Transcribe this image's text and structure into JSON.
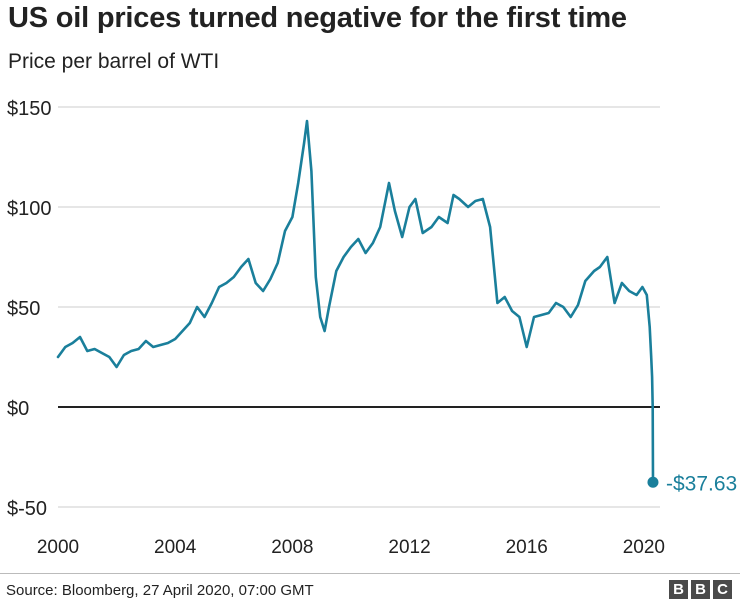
{
  "title": "US oil prices turned negative for the first time",
  "subtitle": "Price per barrel of WTI",
  "source": "Source: Bloomberg, 27 April 2020, 07:00 GMT",
  "logo": [
    "B",
    "B",
    "C"
  ],
  "colors": {
    "line": "#1a7f9b",
    "grid": "#cccccc",
    "zero": "#222222",
    "text": "#222222"
  },
  "chart_data": {
    "type": "line",
    "title": "US oil prices turned negative for the first time",
    "subtitle": "Price per barrel of WTI",
    "xlabel": "",
    "ylabel": "",
    "xlim": [
      2000,
      2020.55
    ],
    "ylim": [
      -50,
      150
    ],
    "grid": true,
    "y_ticks": [
      {
        "value": 150,
        "label": "$150"
      },
      {
        "value": 100,
        "label": "$100"
      },
      {
        "value": 50,
        "label": "$50"
      },
      {
        "value": 0,
        "label": "$0"
      },
      {
        "value": -50,
        "label": "$-50"
      }
    ],
    "x_ticks": [
      {
        "value": 2000,
        "label": "2000"
      },
      {
        "value": 2004,
        "label": "2004"
      },
      {
        "value": 2008,
        "label": "2008"
      },
      {
        "value": 2012,
        "label": "2012"
      },
      {
        "value": 2016,
        "label": "2016"
      },
      {
        "value": 2020,
        "label": "2020"
      }
    ],
    "series": [
      {
        "name": "WTI price per barrel",
        "x": [
          2000,
          2000.25,
          2000.5,
          2000.75,
          2001,
          2001.25,
          2001.5,
          2001.75,
          2002,
          2002.25,
          2002.5,
          2002.75,
          2003,
          2003.25,
          2003.5,
          2003.75,
          2004,
          2004.25,
          2004.5,
          2004.75,
          2005,
          2005.25,
          2005.5,
          2005.75,
          2006,
          2006.25,
          2006.5,
          2006.75,
          2007,
          2007.25,
          2007.5,
          2007.75,
          2008,
          2008.2,
          2008.4,
          2008.5,
          2008.65,
          2008.8,
          2008.95,
          2009.1,
          2009.25,
          2009.5,
          2009.75,
          2010,
          2010.25,
          2010.5,
          2010.75,
          2011,
          2011.3,
          2011.5,
          2011.75,
          2012,
          2012.2,
          2012.45,
          2012.75,
          2013,
          2013.3,
          2013.5,
          2013.7,
          2014,
          2014.25,
          2014.5,
          2014.75,
          2015,
          2015.25,
          2015.5,
          2015.75,
          2016,
          2016.25,
          2016.5,
          2016.75,
          2017,
          2017.25,
          2017.5,
          2017.75,
          2018,
          2018.3,
          2018.5,
          2018.75,
          2019,
          2019.25,
          2019.5,
          2019.75,
          2019.95,
          2020.1,
          2020.2,
          2020.25,
          2020.28,
          2020.3,
          2020.31
        ],
        "values": [
          25,
          30,
          32,
          35,
          28,
          29,
          27,
          25,
          20,
          26,
          28,
          29,
          33,
          30,
          31,
          32,
          34,
          38,
          42,
          50,
          45,
          52,
          60,
          62,
          65,
          70,
          74,
          62,
          58,
          64,
          72,
          88,
          95,
          112,
          132,
          143,
          118,
          65,
          45,
          38,
          50,
          68,
          75,
          80,
          84,
          77,
          82,
          90,
          112,
          98,
          85,
          100,
          104,
          87,
          90,
          95,
          92,
          106,
          104,
          100,
          103,
          104,
          90,
          52,
          55,
          48,
          45,
          30,
          45,
          46,
          47,
          52,
          50,
          45,
          51,
          63,
          68,
          70,
          75,
          52,
          62,
          58,
          56,
          60,
          56,
          40,
          25,
          15,
          0,
          -37.63
        ]
      }
    ],
    "annotations": [
      {
        "x": 2020.31,
        "y": -37.63,
        "label": "-$37.63"
      }
    ]
  }
}
